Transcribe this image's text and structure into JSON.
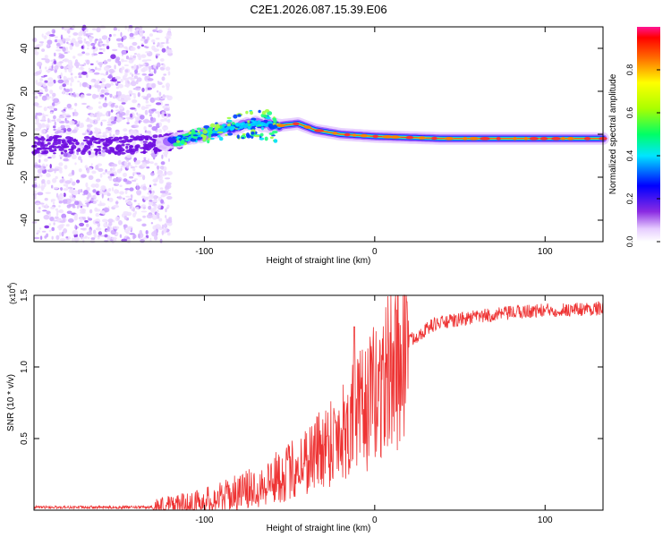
{
  "title": "C2E1.2026.087.15.39.E06",
  "chart_data": [
    {
      "type": "heatmap",
      "xlabel": "Height of straight line (km)",
      "ylabel": "Frequency (Hz)",
      "xlim": [
        -200,
        134
      ],
      "ylim": [
        -50,
        50
      ],
      "xticks": [
        -100,
        0,
        100
      ],
      "yticks": [
        -40,
        -20,
        0,
        20,
        40
      ],
      "colorbar": {
        "label": "Normalized spectral amplitude",
        "range": [
          0,
          1
        ],
        "ticks": [
          "0.0",
          "0.2",
          "0.4",
          "0.6",
          "0.8"
        ],
        "tick_values": [
          0,
          0.2,
          0.4,
          0.6,
          0.8
        ]
      },
      "ridge": [
        {
          "x": -130,
          "y": -5
        },
        {
          "x": -110,
          "y": -2
        },
        {
          "x": -90,
          "y": 2
        },
        {
          "x": -70,
          "y": 5
        },
        {
          "x": -56,
          "y": 4
        },
        {
          "x": -45,
          "y": 5
        },
        {
          "x": -35,
          "y": 2
        },
        {
          "x": -20,
          "y": 0
        },
        {
          "x": 0,
          "y": -1
        },
        {
          "x": 40,
          "y": -2
        },
        {
          "x": 80,
          "y": -2
        },
        {
          "x": 134,
          "y": -2
        }
      ],
      "noise_region_x": [
        -200,
        -120
      ]
    },
    {
      "type": "line",
      "xlabel": "Height of straight line (km)",
      "ylabel": "SNR (10 * v/v)",
      "multiplier": "(x10",
      "multiplier_exp": "4",
      "multiplier_close": ")",
      "xlim": [
        -200,
        134
      ],
      "ylim": [
        0,
        1.5
      ],
      "xticks": [
        -100,
        0,
        100
      ],
      "yticks": [
        0.5,
        1.0,
        1.5
      ],
      "ytick_labels": [
        "0.5",
        "1.0",
        "1.5"
      ],
      "color": "#ee3333",
      "trend": [
        {
          "x": -200,
          "y": 0.02
        },
        {
          "x": -130,
          "y": 0.02
        },
        {
          "x": -110,
          "y": 0.04
        },
        {
          "x": -90,
          "y": 0.09
        },
        {
          "x": -70,
          "y": 0.16
        },
        {
          "x": -50,
          "y": 0.27
        },
        {
          "x": -35,
          "y": 0.4
        },
        {
          "x": -20,
          "y": 0.55
        },
        {
          "x": -5,
          "y": 0.72
        },
        {
          "x": 10,
          "y": 0.98
        },
        {
          "x": 20,
          "y": 1.18
        },
        {
          "x": 35,
          "y": 1.3
        },
        {
          "x": 60,
          "y": 1.35
        },
        {
          "x": 90,
          "y": 1.39
        },
        {
          "x": 134,
          "y": 1.41
        }
      ]
    }
  ]
}
